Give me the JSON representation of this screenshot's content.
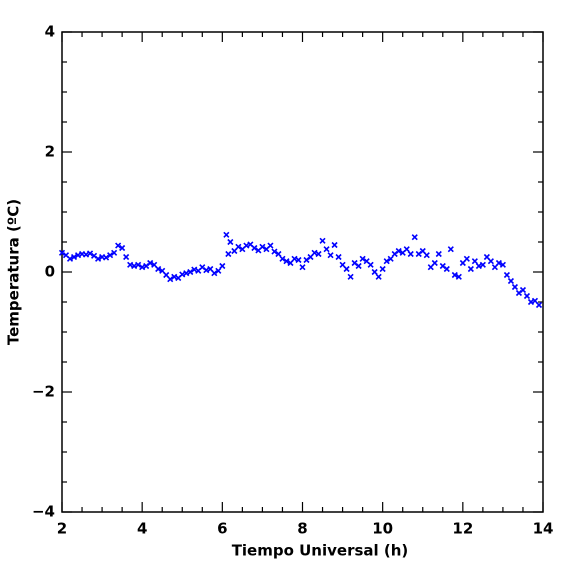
{
  "chart_data": {
    "type": "scatter",
    "xlabel": "Tiempo Universal (h)",
    "ylabel": "Temperatura (ºC)",
    "xlim": [
      2,
      14
    ],
    "ylim": [
      -4,
      4
    ],
    "xticks": [
      2,
      4,
      6,
      8,
      10,
      12,
      14
    ],
    "yticks": [
      {
        "value": -4,
        "label": "−4"
      },
      {
        "value": -2,
        "label": "−2"
      },
      0,
      2,
      4
    ],
    "xminorticks": [
      2.5,
      3,
      3.5,
      4.5,
      5,
      5.5,
      6.5,
      7,
      7.5,
      8.5,
      9,
      9.5,
      10.5,
      11,
      11.5,
      12.5,
      13,
      13.5
    ],
    "yminorticks": [
      -3.5,
      -3,
      -2.5,
      -1.5,
      -1,
      -0.5,
      0.5,
      1,
      1.5,
      2.5,
      3,
      3.5
    ],
    "marker": "x",
    "series": [
      {
        "color": "#0000ff",
        "x": [
          2.0,
          2.1,
          2.2,
          2.3,
          2.4,
          2.5,
          2.6,
          2.7,
          2.8,
          2.9,
          3.0,
          3.1,
          3.2,
          3.3,
          3.4,
          3.5,
          3.6,
          3.7,
          3.8,
          3.9,
          4.0,
          4.1,
          4.2,
          4.3,
          4.4,
          4.5,
          4.6,
          4.7,
          4.8,
          4.9,
          5.0,
          5.1,
          5.2,
          5.3,
          5.4,
          5.5,
          5.6,
          5.7,
          5.8,
          5.9,
          6.0,
          6.1,
          6.15,
          6.2,
          6.3,
          6.4,
          6.5,
          6.6,
          6.7,
          6.8,
          6.9,
          7.0,
          7.1,
          7.2,
          7.3,
          7.4,
          7.5,
          7.6,
          7.7,
          7.8,
          7.9,
          8.0,
          8.1,
          8.2,
          8.3,
          8.4,
          8.5,
          8.6,
          8.7,
          8.8,
          8.9,
          9.0,
          9.1,
          9.2,
          9.3,
          9.4,
          9.5,
          9.6,
          9.7,
          9.8,
          9.9,
          10.0,
          10.1,
          10.2,
          10.3,
          10.4,
          10.5,
          10.6,
          10.7,
          10.8,
          10.9,
          11.0,
          11.1,
          11.2,
          11.3,
          11.4,
          11.5,
          11.6,
          11.7,
          11.8,
          11.9,
          12.0,
          12.1,
          12.2,
          12.3,
          12.4,
          12.5,
          12.6,
          12.7,
          12.8,
          12.9,
          13.0,
          13.1,
          13.2,
          13.3,
          13.4,
          13.5,
          13.6,
          13.7,
          13.8,
          13.9
        ],
        "values": [
          0.32,
          0.28,
          0.22,
          0.25,
          0.28,
          0.3,
          0.29,
          0.31,
          0.27,
          0.22,
          0.25,
          0.24,
          0.28,
          0.32,
          0.44,
          0.4,
          0.25,
          0.12,
          0.1,
          0.12,
          0.08,
          0.1,
          0.15,
          0.12,
          0.05,
          0.02,
          -0.05,
          -0.12,
          -0.08,
          -0.1,
          -0.04,
          -0.02,
          0.0,
          0.04,
          0.02,
          0.08,
          0.03,
          0.05,
          -0.02,
          0.02,
          0.1,
          0.62,
          0.3,
          0.5,
          0.35,
          0.42,
          0.38,
          0.44,
          0.46,
          0.4,
          0.36,
          0.42,
          0.38,
          0.44,
          0.34,
          0.3,
          0.22,
          0.18,
          0.15,
          0.22,
          0.2,
          0.08,
          0.2,
          0.25,
          0.32,
          0.3,
          0.52,
          0.38,
          0.28,
          0.45,
          0.25,
          0.12,
          0.05,
          -0.08,
          0.15,
          0.1,
          0.22,
          0.18,
          0.12,
          0.0,
          -0.08,
          0.05,
          0.18,
          0.22,
          0.3,
          0.35,
          0.32,
          0.38,
          0.3,
          0.58,
          0.3,
          0.35,
          0.28,
          0.08,
          0.15,
          0.3,
          0.1,
          0.05,
          0.38,
          -0.05,
          -0.08,
          0.15,
          0.22,
          0.05,
          0.18,
          0.1,
          0.12,
          0.25,
          0.18,
          0.08,
          0.15,
          0.12,
          -0.05,
          -0.15,
          -0.25,
          -0.35,
          -0.3,
          -0.4,
          -0.5,
          -0.48,
          -0.55
        ]
      }
    ]
  }
}
